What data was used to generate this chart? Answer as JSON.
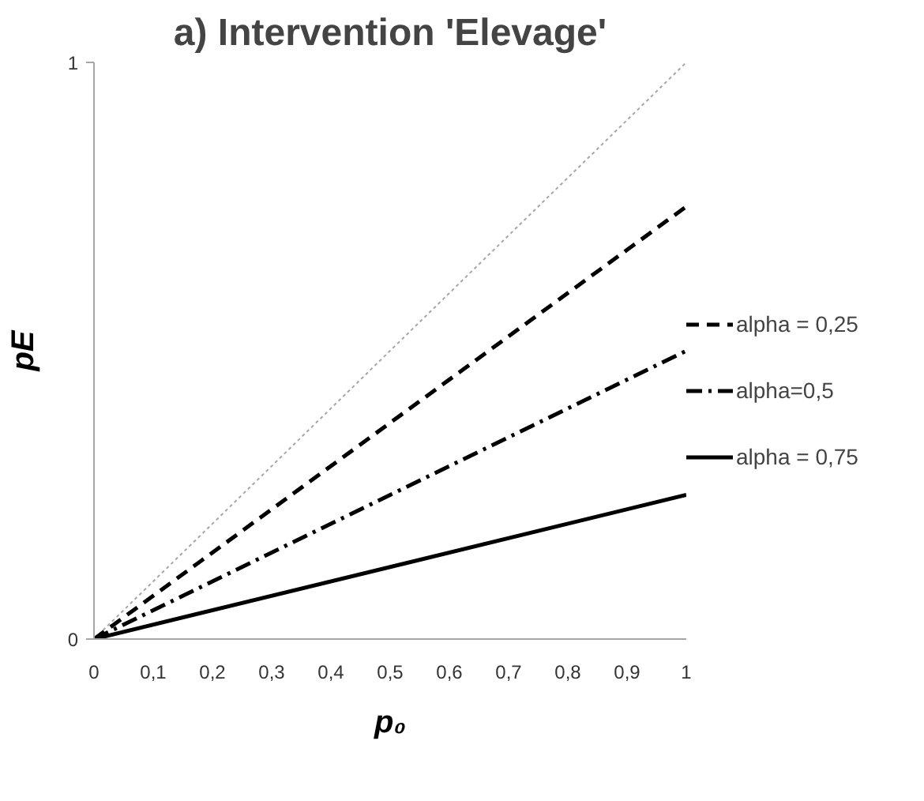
{
  "chart_data": {
    "type": "line",
    "title": "a) Intervention 'Elevage'",
    "xlabel": "p₀",
    "ylabel": "pE",
    "x": [
      0,
      1
    ],
    "series": [
      {
        "color": "#a6a6a6",
        "values": [
          0,
          1
        ],
        "line_style": "dotted"
      },
      {
        "name": "alpha = 0,25",
        "color": "#000000",
        "values": [
          0,
          0.75
        ],
        "line_style": "dashed"
      },
      {
        "name": "alpha=0,5",
        "color": "#000000",
        "values": [
          0,
          0.5
        ],
        "line_style": "dashdot"
      },
      {
        "name": "alpha = 0,75",
        "color": "#000000",
        "values": [
          0,
          0.25
        ],
        "line_style": "solid"
      }
    ],
    "xlim": [
      0,
      1
    ],
    "ylim": [
      0,
      1
    ],
    "xticks": [
      0,
      {
        "value": 0.1,
        "label": "0,1"
      },
      {
        "value": 0.2,
        "label": "0,2"
      },
      {
        "value": 0.3,
        "label": "0,3"
      },
      {
        "value": 0.4,
        "label": "0,4"
      },
      {
        "value": 0.5,
        "label": "0,5"
      },
      {
        "value": 0.6,
        "label": "0,6"
      },
      {
        "value": 0.7,
        "label": "0,7"
      },
      {
        "value": 0.8,
        "label": "0,8"
      },
      {
        "value": 0.9,
        "label": "0,9"
      },
      1
    ],
    "yticks": [
      0,
      1
    ],
    "grid": false,
    "legend": "right",
    "marker": "none"
  }
}
